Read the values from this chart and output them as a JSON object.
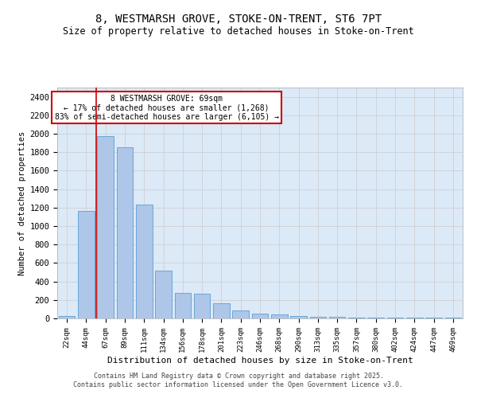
{
  "title_line1": "8, WESTMARSH GROVE, STOKE-ON-TRENT, ST6 7PT",
  "title_line2": "Size of property relative to detached houses in Stoke-on-Trent",
  "xlabel": "Distribution of detached houses by size in Stoke-on-Trent",
  "ylabel": "Number of detached properties",
  "categories": [
    "22sqm",
    "44sqm",
    "67sqm",
    "89sqm",
    "111sqm",
    "134sqm",
    "156sqm",
    "178sqm",
    "201sqm",
    "223sqm",
    "246sqm",
    "268sqm",
    "290sqm",
    "313sqm",
    "335sqm",
    "357sqm",
    "380sqm",
    "402sqm",
    "424sqm",
    "447sqm",
    "469sqm"
  ],
  "values": [
    30,
    1160,
    1970,
    1850,
    1230,
    515,
    275,
    270,
    160,
    90,
    50,
    40,
    30,
    15,
    15,
    10,
    5,
    5,
    5,
    5,
    5
  ],
  "bar_color": "#aec6e8",
  "bar_edge_color": "#5a9fd4",
  "grid_color": "#cccccc",
  "background_color": "#dce9f7",
  "annotation_text": "8 WESTMARSH GROVE: 69sqm\n← 17% of detached houses are smaller (1,268)\n83% of semi-detached houses are larger (6,105) →",
  "annotation_box_color": "#cc0000",
  "vline_x_index": 2,
  "ylim": [
    0,
    2500
  ],
  "yticks": [
    0,
    200,
    400,
    600,
    800,
    1000,
    1200,
    1400,
    1600,
    1800,
    2000,
    2200,
    2400
  ],
  "footer_line1": "Contains HM Land Registry data © Crown copyright and database right 2025.",
  "footer_line2": "Contains public sector information licensed under the Open Government Licence v3.0."
}
